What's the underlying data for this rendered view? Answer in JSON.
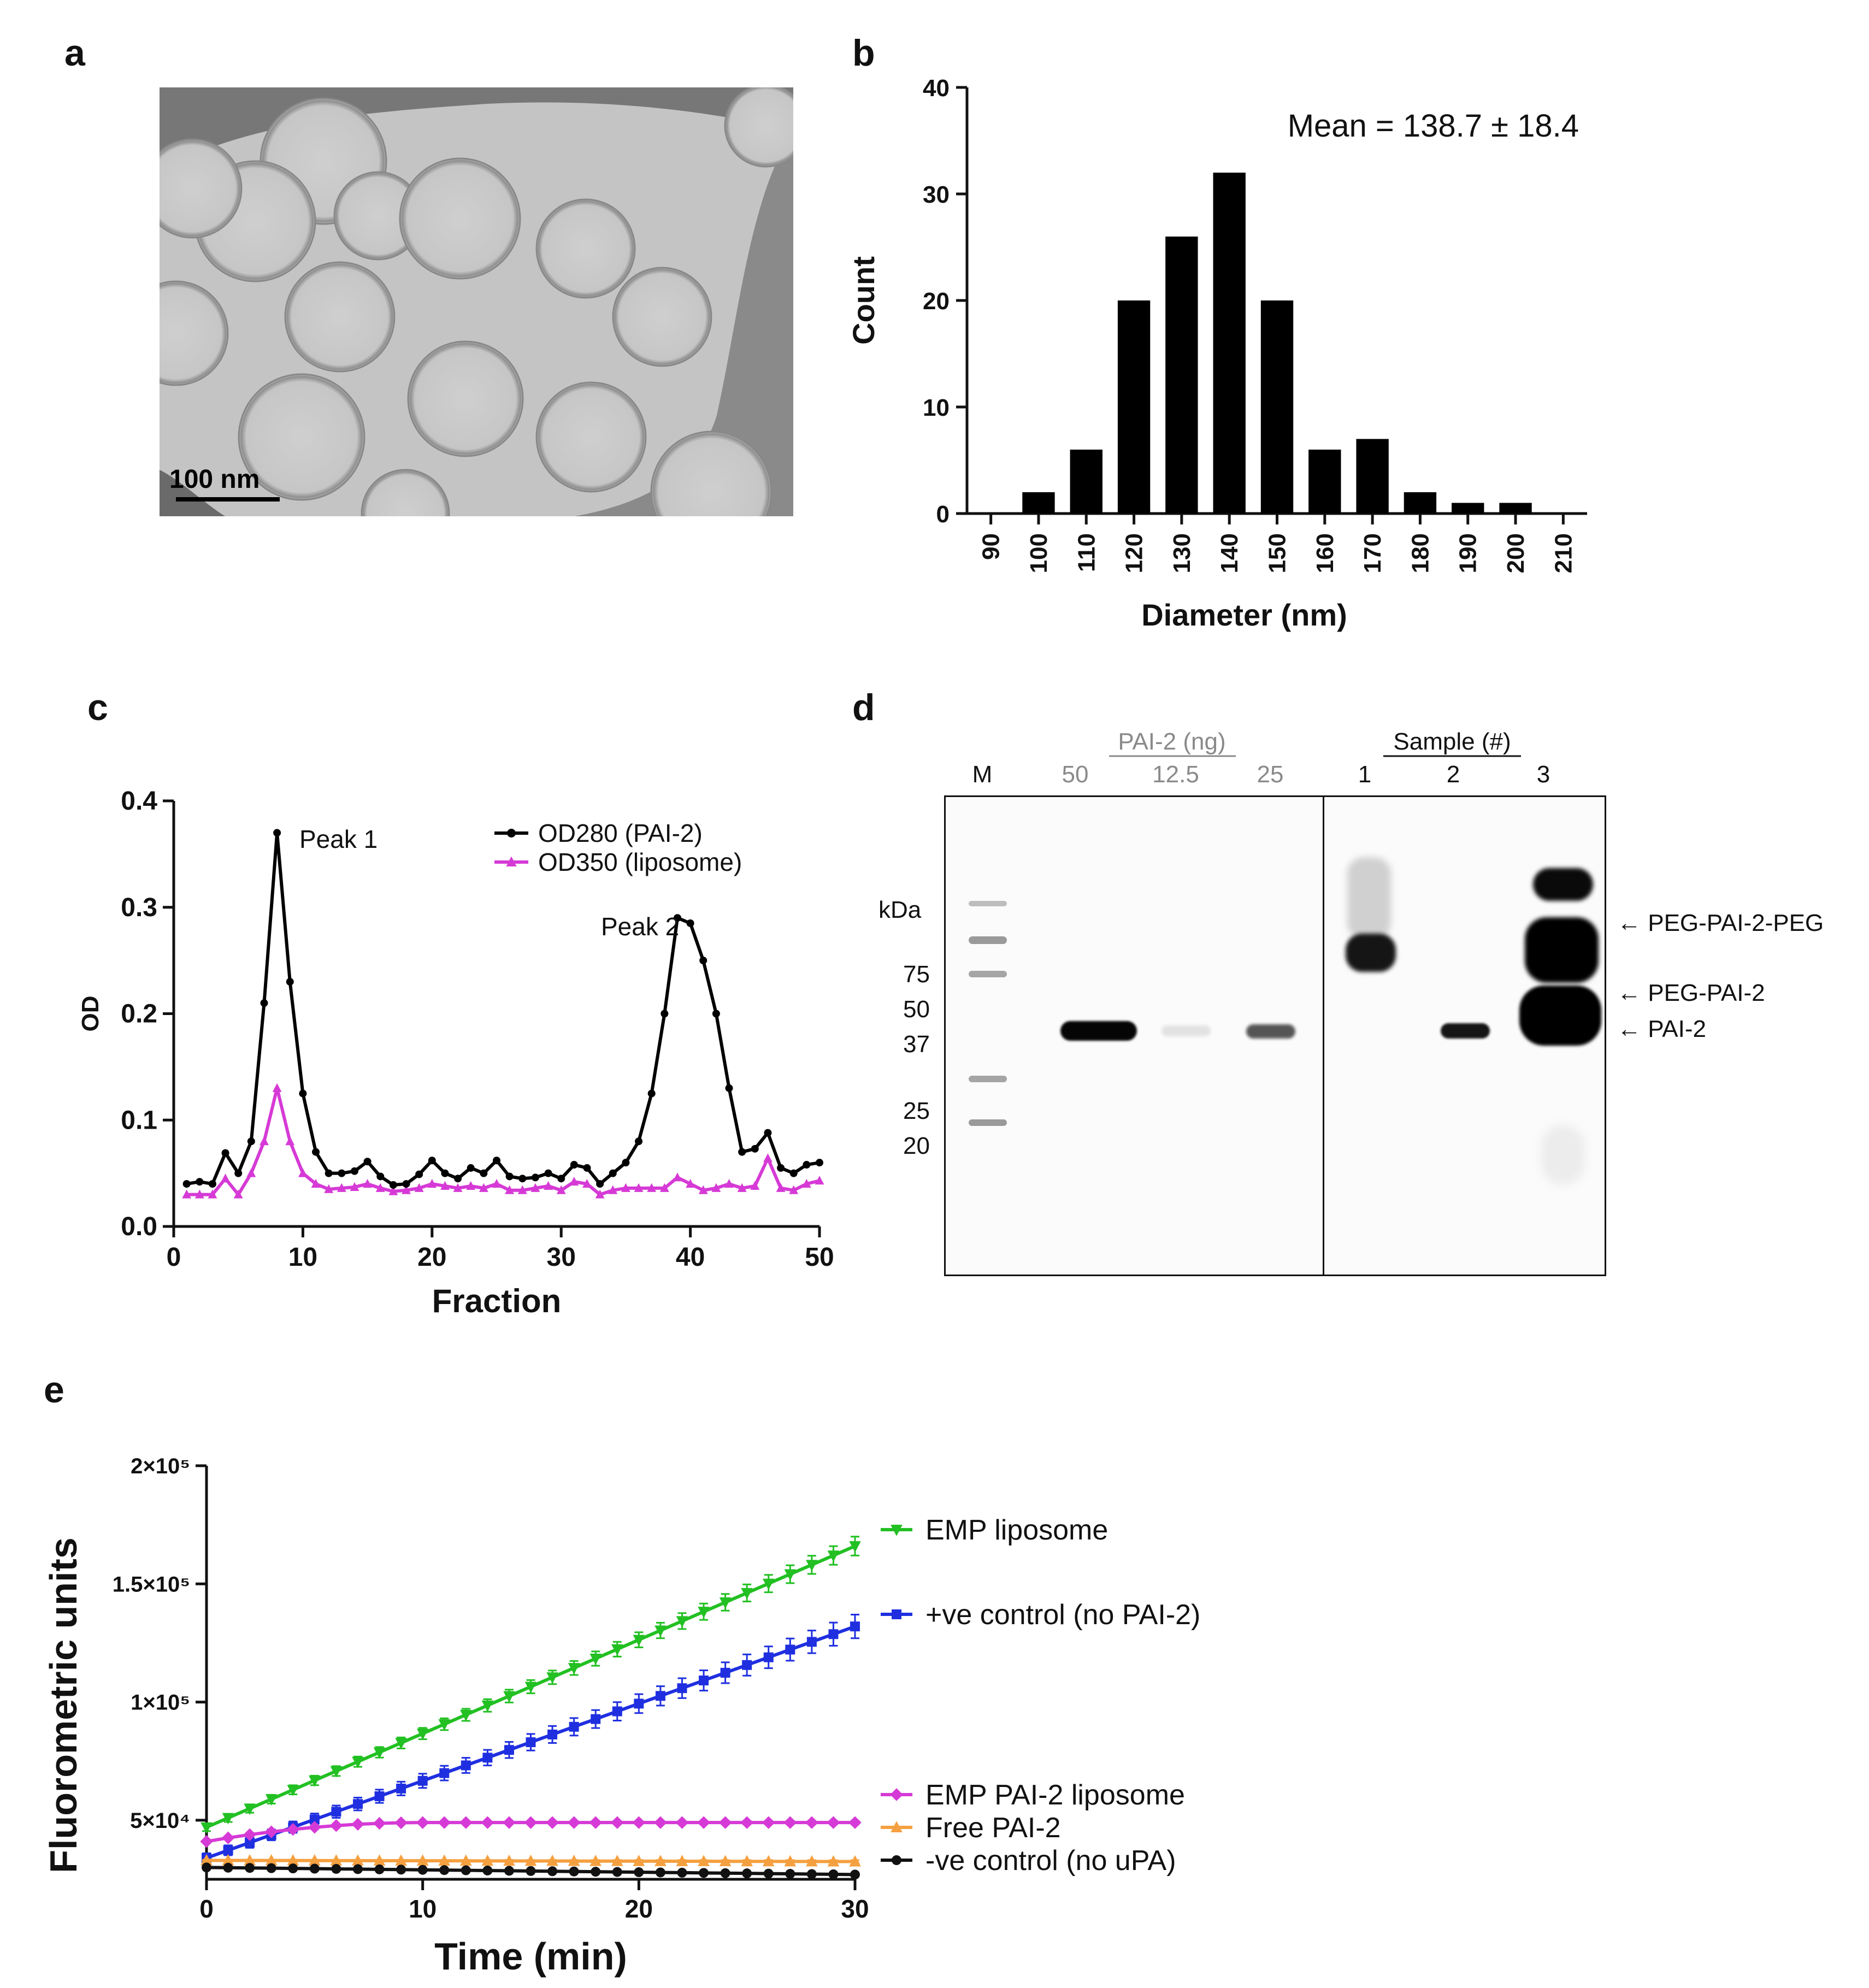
{
  "panels": {
    "a": {
      "letter": "a",
      "scale_bar_label": "100 nm"
    },
    "b": {
      "letter": "b",
      "annotation": "Mean = 138.7 ± 18.4"
    },
    "c": {
      "letter": "c",
      "peak_labels": [
        "Peak 1",
        "Peak 2"
      ]
    },
    "d": {
      "letter": "d",
      "group_headers": [
        "PAI-2 (ng)",
        "Sample (#)"
      ],
      "lane_labels": [
        "M",
        "50",
        "12.5",
        "25",
        "1",
        "2",
        "3"
      ],
      "kda_label": "kDa",
      "marker_labels": [
        "75",
        "50",
        "37",
        "25",
        "20"
      ],
      "band_labels": [
        "← PEG-PAI-2-PEG",
        "← PEG-PAI-2",
        "← PAI-2"
      ],
      "header_color": "#8a8a8a"
    },
    "e": {
      "letter": "e",
      "y_tick_labels": [
        "5×10⁴",
        "1×10⁵",
        "1.5×10⁵",
        "2×10⁵"
      ]
    }
  },
  "chart_data": [
    {
      "panel": "b",
      "type": "bar",
      "xlabel": "Diameter (nm)",
      "ylabel": "Count",
      "categories": [
        "90",
        "100",
        "110",
        "120",
        "130",
        "140",
        "150",
        "160",
        "170",
        "180",
        "190",
        "200",
        "210"
      ],
      "values": [
        0,
        2,
        6,
        20,
        26,
        32,
        20,
        6,
        7,
        2,
        1,
        1,
        0
      ],
      "ylim": [
        0,
        40
      ],
      "y_ticks": [
        0,
        10,
        20,
        30,
        40
      ],
      "bar_color": "#000000"
    },
    {
      "panel": "c",
      "type": "line",
      "xlabel": "Fraction",
      "ylabel": "OD",
      "xlim": [
        0,
        50
      ],
      "ylim": [
        0,
        0.4
      ],
      "x_ticks": [
        0,
        10,
        20,
        30,
        40,
        50
      ],
      "y_ticks": [
        0.0,
        0.1,
        0.2,
        0.3,
        0.4
      ],
      "y_tick_labels": [
        "0.0",
        "0.1",
        "0.2",
        "0.3",
        "0.4"
      ],
      "legend_position": "top-right",
      "x": [
        1,
        2,
        3,
        4,
        5,
        6,
        7,
        8,
        9,
        10,
        11,
        12,
        13,
        14,
        15,
        16,
        17,
        18,
        19,
        20,
        21,
        22,
        23,
        24,
        25,
        26,
        27,
        28,
        29,
        30,
        31,
        32,
        33,
        34,
        35,
        36,
        37,
        38,
        39,
        40,
        41,
        42,
        43,
        44,
        45,
        46,
        47,
        48,
        49,
        50
      ],
      "series": [
        {
          "name": "OD280 (PAI-2)",
          "color": "#000000",
          "marker": "circle",
          "values": [
            0.04,
            0.042,
            0.04,
            0.069,
            0.05,
            0.08,
            0.21,
            0.37,
            0.23,
            0.125,
            0.07,
            0.05,
            0.05,
            0.052,
            0.061,
            0.047,
            0.039,
            0.04,
            0.049,
            0.062,
            0.05,
            0.045,
            0.055,
            0.05,
            0.062,
            0.047,
            0.045,
            0.046,
            0.05,
            0.045,
            0.058,
            0.055,
            0.04,
            0.05,
            0.06,
            0.08,
            0.125,
            0.2,
            0.29,
            0.285,
            0.25,
            0.2,
            0.13,
            0.07,
            0.073,
            0.088,
            0.055,
            0.05,
            0.058,
            0.06
          ]
        },
        {
          "name": "OD350 (liposome)",
          "color": "#d63ad6",
          "marker": "triangle",
          "values": [
            0.03,
            0.03,
            0.03,
            0.045,
            0.03,
            0.05,
            0.08,
            0.13,
            0.08,
            0.05,
            0.04,
            0.035,
            0.036,
            0.037,
            0.04,
            0.036,
            0.033,
            0.034,
            0.036,
            0.04,
            0.038,
            0.036,
            0.038,
            0.036,
            0.04,
            0.034,
            0.034,
            0.036,
            0.038,
            0.034,
            0.042,
            0.04,
            0.03,
            0.034,
            0.036,
            0.036,
            0.036,
            0.036,
            0.046,
            0.04,
            0.034,
            0.036,
            0.04,
            0.036,
            0.038,
            0.064,
            0.036,
            0.034,
            0.04,
            0.043
          ]
        }
      ]
    },
    {
      "panel": "e",
      "type": "line",
      "xlabel": "Time (min)",
      "ylabel": "Fluorometric units",
      "xlim": [
        0,
        30
      ],
      "ylim": [
        25000,
        200000
      ],
      "x_ticks": [
        0,
        10,
        20,
        30
      ],
      "y_ticks": [
        50000,
        100000,
        150000,
        200000
      ],
      "legend_position": "right",
      "x": [
        0,
        1,
        2,
        3,
        4,
        5,
        6,
        7,
        8,
        9,
        10,
        11,
        12,
        13,
        14,
        15,
        16,
        17,
        18,
        19,
        20,
        21,
        22,
        23,
        24,
        25,
        26,
        27,
        28,
        29,
        30
      ],
      "series": [
        {
          "name": "EMP liposome",
          "color": "#22c022",
          "marker": "triangle-down",
          "start": 47000,
          "end": 166000,
          "error": 4000
        },
        {
          "name": "+ve control (no PAI-2)",
          "color": "#1f2fe0",
          "marker": "square",
          "start": 34000,
          "end": 132000,
          "error": 5000
        },
        {
          "name": "EMP PAI-2 liposome",
          "color": "#d63ad6",
          "marker": "diamond",
          "start": 41000,
          "end": 49000,
          "plateau_at": 10,
          "error": 800
        },
        {
          "name": "Free PAI-2",
          "color": "#f5a040",
          "marker": "triangle",
          "start": 33000,
          "end": 32500,
          "error": 600
        },
        {
          "name": "-ve control (no uPA)",
          "color": "#111111",
          "marker": "circle",
          "start": 30000,
          "end": 27000,
          "error": 600
        }
      ]
    }
  ]
}
